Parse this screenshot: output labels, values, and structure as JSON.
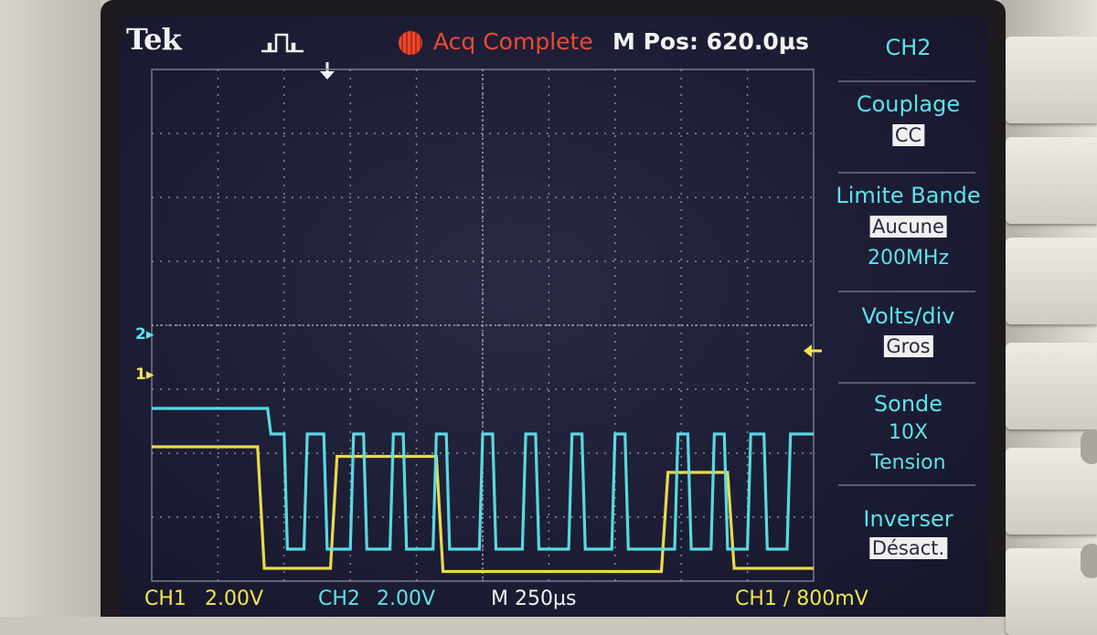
{
  "header": {
    "brand": "Tek",
    "acquisition_status": "Acq Complete",
    "horizontal_position": "M Pos: 620.0µs"
  },
  "menu": {
    "channel": "CH2",
    "items": [
      {
        "title": "Couplage",
        "value": "CC"
      },
      {
        "title": "Limite Bande",
        "value": "Aucune",
        "sub": "200MHz"
      },
      {
        "title": "Volts/div",
        "value": "Gros"
      },
      {
        "title": "Sonde",
        "sub1": "10X",
        "sub2": "Tension"
      },
      {
        "title": "Inverser",
        "value": "Désact."
      }
    ]
  },
  "footer": {
    "ch1_label": "CH1",
    "ch1_scale": "2.00V",
    "ch2_label": "CH2",
    "ch2_scale": "2.00V",
    "timebase": "M 250µs",
    "trigger": "CH1 ∕ 800mV"
  },
  "markers": {
    "ch1": "1",
    "ch2": "2"
  },
  "colors": {
    "ch1": "#f2e64e",
    "ch2": "#5de3ea",
    "acq_status": "#ee4a32"
  },
  "chart_data": {
    "type": "line",
    "title": "",
    "xlabel": "",
    "ylabel": "",
    "x_divisions": 10,
    "y_divisions": 8,
    "grid": true,
    "series": [
      {
        "name": "CH1",
        "color": "#f2e64e",
        "x": [
          0,
          1.6,
          1.7,
          2.7,
          2.8,
          4.3,
          4.4,
          7.7,
          7.8,
          8.7,
          8.8,
          10
        ],
        "y": [
          2.1,
          2.1,
          0.2,
          0.2,
          1.95,
          1.95,
          0.15,
          0.15,
          1.7,
          1.7,
          0.2,
          0.2
        ]
      },
      {
        "name": "CH2",
        "color": "#5de3ea",
        "x": [
          0,
          1.75,
          1.8,
          2.0,
          2.05,
          2.3,
          2.35,
          2.6,
          2.65,
          3.0,
          3.05,
          3.2,
          3.25,
          3.6,
          3.65,
          3.8,
          3.85,
          4.25,
          4.3,
          4.45,
          4.5,
          4.95,
          5.0,
          5.15,
          5.2,
          5.6,
          5.65,
          5.8,
          5.85,
          6.3,
          6.35,
          6.5,
          6.55,
          6.95,
          7.0,
          7.15,
          7.2,
          7.9,
          7.95,
          8.1,
          8.15,
          8.45,
          8.5,
          8.65,
          8.7,
          9.0,
          9.05,
          9.25,
          9.3,
          9.6,
          9.65,
          10
        ],
        "y": [
          2.7,
          2.7,
          2.3,
          2.3,
          0.5,
          0.5,
          2.3,
          2.3,
          0.5,
          0.5,
          2.3,
          2.3,
          0.5,
          0.5,
          2.3,
          2.3,
          0.5,
          0.5,
          2.3,
          2.3,
          0.5,
          0.5,
          2.3,
          2.3,
          0.5,
          0.5,
          2.3,
          2.3,
          0.5,
          0.5,
          2.3,
          2.3,
          0.5,
          0.5,
          2.3,
          2.3,
          0.5,
          0.5,
          2.3,
          2.3,
          0.5,
          0.5,
          2.3,
          2.3,
          0.5,
          0.5,
          2.3,
          2.3,
          0.5,
          0.5,
          2.3,
          2.3
        ]
      }
    ]
  }
}
